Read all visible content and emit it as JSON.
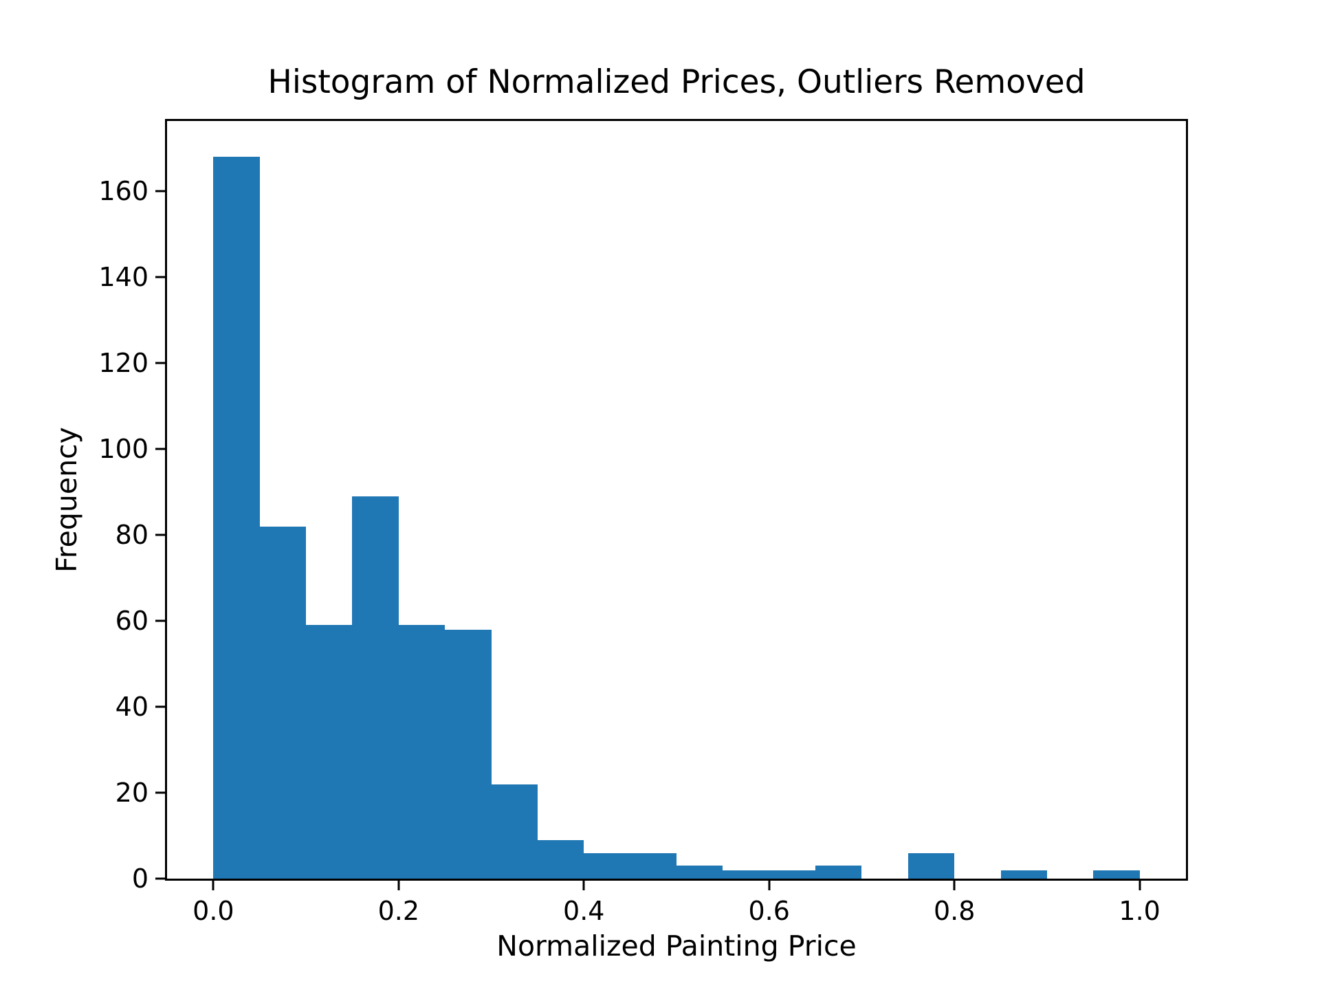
{
  "chart_data": {
    "type": "bar",
    "subtype": "histogram",
    "title": "Histogram of Normalized Prices, Outliers Removed",
    "xlabel": "Normalized Painting Price",
    "ylabel": "Frequency",
    "bin_start": 0.0,
    "bin_width": 0.05,
    "bin_edges": [
      0.0,
      0.05,
      0.1,
      0.15,
      0.2,
      0.25,
      0.3,
      0.35,
      0.4,
      0.45,
      0.5,
      0.55,
      0.6,
      0.65,
      0.7,
      0.75,
      0.8,
      0.85,
      0.9,
      0.95,
      1.0
    ],
    "counts": [
      168,
      82,
      59,
      89,
      59,
      58,
      22,
      9,
      6,
      6,
      3,
      2,
      2,
      3,
      0,
      6,
      0,
      2,
      0,
      2
    ],
    "xlim": [
      -0.05,
      1.05
    ],
    "ylim": [
      0,
      176.4
    ],
    "xtick_values": [
      0.0,
      0.2,
      0.4,
      0.6,
      0.8,
      1.0
    ],
    "xtick_labels": [
      "0.0",
      "0.2",
      "0.4",
      "0.6",
      "0.8",
      "1.0"
    ],
    "ytick_values": [
      0,
      20,
      40,
      60,
      80,
      100,
      120,
      140,
      160
    ],
    "ytick_labels": [
      "0",
      "20",
      "40",
      "60",
      "80",
      "100",
      "120",
      "140",
      "160"
    ],
    "bar_color": "#1f77b4",
    "background_color": "#ffffff",
    "grid": false,
    "legend_position": "none"
  }
}
